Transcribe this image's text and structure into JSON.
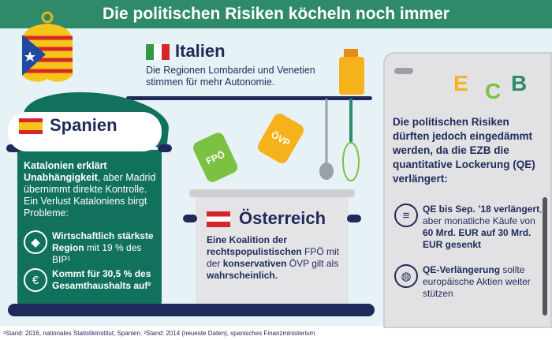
{
  "title": "Die politischen Risiken köcheln noch immer",
  "italy": {
    "heading": "Italien",
    "text": "Die Regionen Lombardei und Venetien stimmen für mehr Autonomie."
  },
  "spain": {
    "heading": "Spanien",
    "intro_bold": "Katalonien erklärt Unabhängigkeit",
    "intro_rest": ", aber Madrid übernimmt direkte Kontrolle. Ein Verlust Kataloniens birgt Probleme:",
    "item1_bold": "Wirtschaftlich stärkste Region",
    "item1_rest": " mit 19 % des BIP¹",
    "item2_bold": "Kommt für 30,5 % des Gesamthaushalts auf²"
  },
  "austria": {
    "heading": "Österreich",
    "t1": "Eine Koalition der rechtspopulistischen ",
    "t2": "FPÖ",
    "t3": " mit der ",
    "t4": "konservativen",
    "t5": " ÖVP gilt als ",
    "t6": "wahrscheinlich."
  },
  "shakers": {
    "fpo": "FPÖ",
    "ovp": "ÖVP"
  },
  "ecb": {
    "letters": [
      "E",
      "C",
      "B"
    ],
    "intro": "Die politischen Risiken dürften jedoch eingedämmt werden, da die EZB die quantitative Lockerung (QE) verlängert:",
    "item1_b1": "QE bis Sep. ’18 verlängert",
    "item1_r1": ", aber monatliche Käufe von ",
    "item1_b2": "60 Mrd. EUR auf 30 Mrd. EUR gesenkt",
    "item2_b": "QE-Verlängerung",
    "item2_r": " sollte europäische Aktien weiter stützen"
  },
  "footnote": "¹Stand: 2016, nationales Statistikinstitut, Spanien. ²Stand: 2014 (neueste Daten), spanisches Finanzministerium.",
  "colors": {
    "green": "#12715c",
    "title": "#2e8a68",
    "navy": "#1f2a5a"
  }
}
